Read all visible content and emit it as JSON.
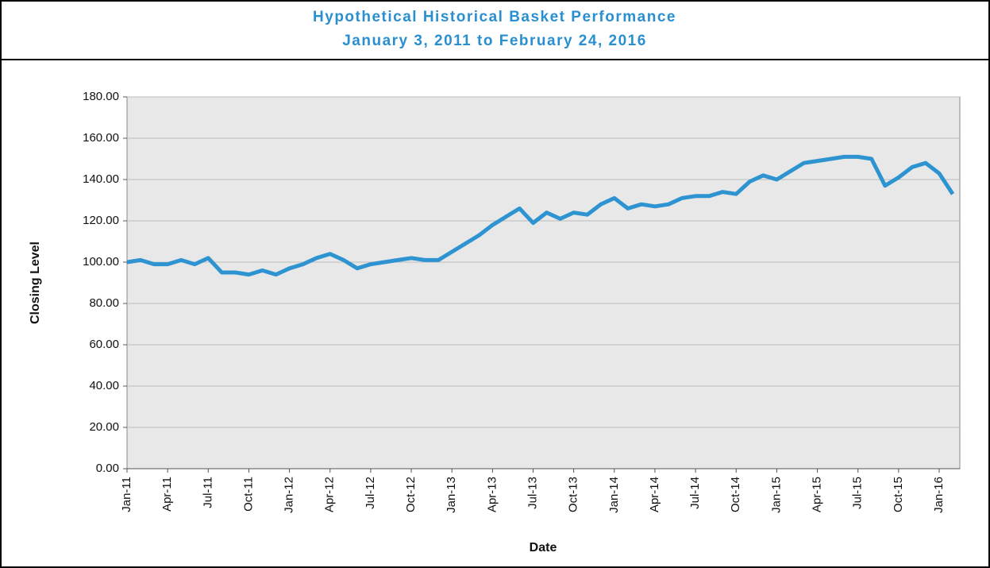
{
  "chart_data": {
    "type": "line",
    "title": "Hypothetical Historical Basket Performance",
    "subtitle": "January 3, 2011 to February 24, 2016",
    "y_label": "Closing Level",
    "x_label": "Date",
    "categories": [
      "Jan-11",
      null,
      null,
      "Apr-11",
      null,
      null,
      "Jul-11",
      null,
      null,
      "Oct-11",
      null,
      null,
      "Jan-12",
      null,
      null,
      "Apr-12",
      null,
      null,
      "Jul-12",
      null,
      null,
      "Oct-12",
      null,
      null,
      "Jan-13",
      null,
      null,
      "Apr-13",
      null,
      null,
      "Jul-13",
      null,
      null,
      "Oct-13",
      null,
      null,
      "Jan-14",
      null,
      null,
      "Apr-14",
      null,
      null,
      "Jul-14",
      null,
      null,
      "Oct-14",
      null,
      null,
      "Jan-15",
      null,
      null,
      "Apr-15",
      null,
      null,
      "Jul-15",
      null,
      null,
      "Oct-15",
      null,
      null,
      "Jan-16",
      null
    ],
    "series": [
      {
        "name": "Basket",
        "color": "#2e94d1",
        "values": [
          100,
          101,
          99,
          99,
          101,
          99,
          102,
          95,
          95,
          94,
          96,
          94,
          97,
          99,
          102,
          104,
          101,
          97,
          99,
          100,
          101,
          102,
          101,
          101,
          105,
          109,
          113,
          118,
          122,
          126,
          119,
          124,
          121,
          124,
          123,
          128,
          131,
          126,
          128,
          127,
          128,
          131,
          132,
          132,
          134,
          133,
          139,
          142,
          140,
          144,
          148,
          149,
          150,
          151,
          151,
          150,
          137,
          141,
          146,
          148,
          143,
          133
        ]
      }
    ],
    "ylim": [
      0,
      180
    ],
    "yticks": [
      {
        "value": 0,
        "label": "0.00"
      },
      {
        "value": 20,
        "label": "20.00"
      },
      {
        "value": 40,
        "label": "40.00"
      },
      {
        "value": 60,
        "label": "60.00"
      },
      {
        "value": 80,
        "label": "80.00"
      },
      {
        "value": 100,
        "label": "100.00"
      },
      {
        "value": 120,
        "label": "120.00"
      },
      {
        "value": 140,
        "label": "140.00"
      },
      {
        "value": 160,
        "label": "160.00"
      },
      {
        "value": 180,
        "label": "180.00"
      }
    ],
    "grid": true
  }
}
